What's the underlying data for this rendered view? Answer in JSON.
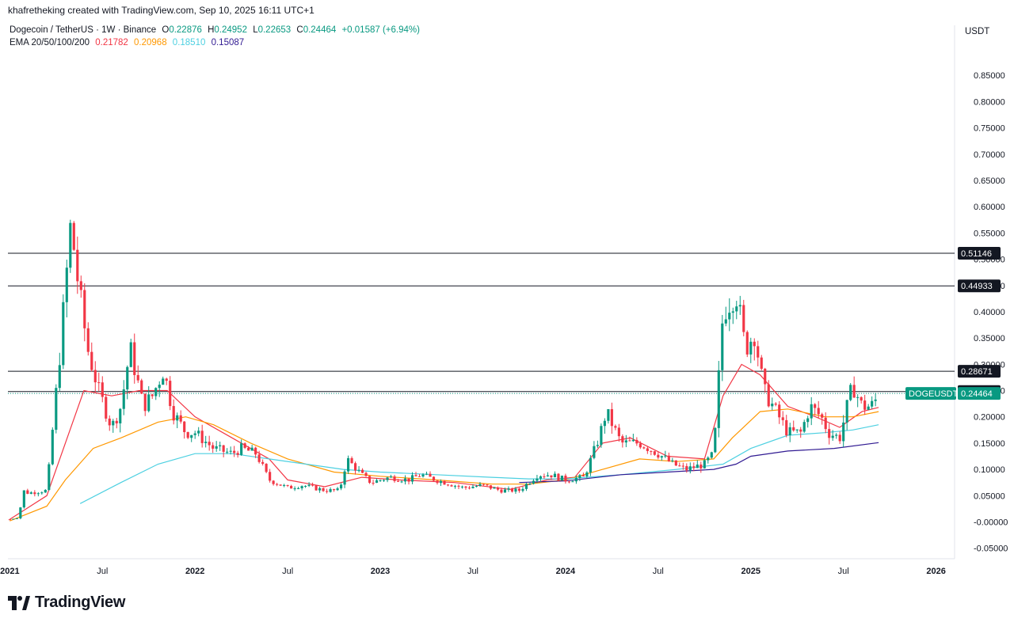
{
  "header": {
    "credit": "khafretheking created with TradingView.com, Sep 10, 2025 16:11 UTC+1",
    "symbol": "Dogecoin / TetherUS · 1W · Binance",
    "o_label": "O",
    "o_value": "0.22876",
    "h_label": "H",
    "h_value": "0.24952",
    "l_label": "L",
    "l_value": "0.22653",
    "c_label": "C",
    "c_value": "0.24464",
    "change": "+0.01587 (+6.94%)",
    "ema_label": "EMA 20/50/100/200",
    "ema20": "0.21782",
    "ema50": "0.20968",
    "ema100": "0.18510",
    "ema200": "0.15087",
    "unit": "USDT"
  },
  "brand": {
    "name": "TradingView",
    "logo_icon": "tradingview-logo-icon"
  },
  "colors": {
    "up": "#089981",
    "down": "#f23645",
    "ema20": "#f23645",
    "ema50": "#ff9800",
    "ema100": "#4dd0e1",
    "ema200": "#311b92"
  },
  "chart_data": {
    "type": "candlestick",
    "symbol": "DOGEUSDT",
    "ylim": [
      -0.07,
      0.9
    ],
    "y_ticks": [
      "-0.05000",
      "-0.00000",
      "0.05000",
      "0.10000",
      "0.15000",
      "0.20000",
      "0.25000",
      "0.30000",
      "0.35000",
      "0.40000",
      "0.45000",
      "0.50000",
      "0.55000",
      "0.60000",
      "0.65000",
      "0.70000",
      "0.75000",
      "0.80000",
      "0.85000"
    ],
    "x_ticks": [
      {
        "label": "2021",
        "t": 2021.0
      },
      {
        "label": "Jul",
        "t": 2021.5
      },
      {
        "label": "2022",
        "t": 2022.0
      },
      {
        "label": "Jul",
        "t": 2022.5
      },
      {
        "label": "2023",
        "t": 2023.0
      },
      {
        "label": "Jul",
        "t": 2023.5
      },
      {
        "label": "2024",
        "t": 2024.0
      },
      {
        "label": "Jul",
        "t": 2024.5
      },
      {
        "label": "2025",
        "t": 2025.0
      },
      {
        "label": "Jul",
        "t": 2025.5
      },
      {
        "label": "2026",
        "t": 2026.0
      }
    ],
    "x_range": [
      2020.99,
      2026.1
    ],
    "horizontal_levels": [
      {
        "value": 0.51146,
        "label": "0.51146"
      },
      {
        "value": 0.44933,
        "label": "0.44933"
      },
      {
        "value": 0.28671,
        "label": "0.28671"
      },
      {
        "value": 0.24827,
        "label": "0.24827"
      }
    ],
    "last_price": {
      "value": 0.24464,
      "label": "0.24464",
      "symbol_label": "DOGEUSDT"
    },
    "price_anchors": [
      [
        2021.0,
        0.005
      ],
      [
        2021.05,
        0.008
      ],
      [
        2021.07,
        0.06
      ],
      [
        2021.1,
        0.055
      ],
      [
        2021.2,
        0.06
      ],
      [
        2021.27,
        0.32
      ],
      [
        2021.33,
        0.57
      ],
      [
        2021.37,
        0.45
      ],
      [
        2021.42,
        0.33
      ],
      [
        2021.48,
        0.25
      ],
      [
        2021.55,
        0.18
      ],
      [
        2021.6,
        0.22
      ],
      [
        2021.65,
        0.33
      ],
      [
        2021.72,
        0.22
      ],
      [
        2021.77,
        0.24
      ],
      [
        2021.83,
        0.29
      ],
      [
        2021.88,
        0.21
      ],
      [
        2021.95,
        0.17
      ],
      [
        2022.0,
        0.17
      ],
      [
        2022.1,
        0.14
      ],
      [
        2022.2,
        0.13
      ],
      [
        2022.25,
        0.14
      ],
      [
        2022.33,
        0.13
      ],
      [
        2022.4,
        0.08
      ],
      [
        2022.5,
        0.065
      ],
      [
        2022.58,
        0.07
      ],
      [
        2022.7,
        0.06
      ],
      [
        2022.78,
        0.06
      ],
      [
        2022.82,
        0.12
      ],
      [
        2022.9,
        0.09
      ],
      [
        2022.95,
        0.075
      ],
      [
        2023.05,
        0.085
      ],
      [
        2023.15,
        0.08
      ],
      [
        2023.22,
        0.09
      ],
      [
        2023.3,
        0.08
      ],
      [
        2023.45,
        0.065
      ],
      [
        2023.55,
        0.07
      ],
      [
        2023.65,
        0.06
      ],
      [
        2023.75,
        0.06
      ],
      [
        2023.85,
        0.09
      ],
      [
        2023.92,
        0.09
      ],
      [
        2024.0,
        0.08
      ],
      [
        2024.1,
        0.085
      ],
      [
        2024.18,
        0.16
      ],
      [
        2024.22,
        0.21
      ],
      [
        2024.3,
        0.15
      ],
      [
        2024.4,
        0.15
      ],
      [
        2024.5,
        0.13
      ],
      [
        2024.58,
        0.11
      ],
      [
        2024.65,
        0.1
      ],
      [
        2024.75,
        0.11
      ],
      [
        2024.8,
        0.13
      ],
      [
        2024.85,
        0.4
      ],
      [
        2024.92,
        0.44
      ],
      [
        2024.97,
        0.33
      ],
      [
        2025.02,
        0.36
      ],
      [
        2025.07,
        0.25
      ],
      [
        2025.12,
        0.22
      ],
      [
        2025.2,
        0.17
      ],
      [
        2025.27,
        0.17
      ],
      [
        2025.32,
        0.22
      ],
      [
        2025.38,
        0.2
      ],
      [
        2025.42,
        0.17
      ],
      [
        2025.48,
        0.16
      ],
      [
        2025.52,
        0.22
      ],
      [
        2025.55,
        0.26
      ],
      [
        2025.6,
        0.22
      ],
      [
        2025.65,
        0.22
      ],
      [
        2025.69,
        0.24
      ]
    ],
    "ema_lines": [
      {
        "name": "EMA 20",
        "points": [
          [
            2021.0,
            0.005
          ],
          [
            2021.2,
            0.05
          ],
          [
            2021.3,
            0.15
          ],
          [
            2021.4,
            0.25
          ],
          [
            2021.55,
            0.24
          ],
          [
            2021.7,
            0.25
          ],
          [
            2021.85,
            0.25
          ],
          [
            2022.0,
            0.2
          ],
          [
            2022.2,
            0.16
          ],
          [
            2022.4,
            0.12
          ],
          [
            2022.5,
            0.08
          ],
          [
            2022.7,
            0.067
          ],
          [
            2022.9,
            0.085
          ],
          [
            2023.1,
            0.08
          ],
          [
            2023.4,
            0.075
          ],
          [
            2023.7,
            0.062
          ],
          [
            2023.9,
            0.08
          ],
          [
            2024.05,
            0.085
          ],
          [
            2024.2,
            0.15
          ],
          [
            2024.35,
            0.16
          ],
          [
            2024.55,
            0.125
          ],
          [
            2024.75,
            0.12
          ],
          [
            2024.85,
            0.24
          ],
          [
            2024.95,
            0.3
          ],
          [
            2025.05,
            0.28
          ],
          [
            2025.2,
            0.22
          ],
          [
            2025.35,
            0.2
          ],
          [
            2025.48,
            0.18
          ],
          [
            2025.6,
            0.21
          ],
          [
            2025.69,
            0.218
          ]
        ]
      },
      {
        "name": "EMA 50",
        "points": [
          [
            2021.0,
            0.002
          ],
          [
            2021.2,
            0.03
          ],
          [
            2021.3,
            0.08
          ],
          [
            2021.45,
            0.14
          ],
          [
            2021.6,
            0.16
          ],
          [
            2021.8,
            0.19
          ],
          [
            2021.95,
            0.2
          ],
          [
            2022.1,
            0.185
          ],
          [
            2022.3,
            0.15
          ],
          [
            2022.5,
            0.12
          ],
          [
            2022.75,
            0.095
          ],
          [
            2023.0,
            0.087
          ],
          [
            2023.3,
            0.08
          ],
          [
            2023.6,
            0.072
          ],
          [
            2023.8,
            0.072
          ],
          [
            2024.0,
            0.08
          ],
          [
            2024.2,
            0.1
          ],
          [
            2024.4,
            0.12
          ],
          [
            2024.6,
            0.115
          ],
          [
            2024.8,
            0.12
          ],
          [
            2024.9,
            0.16
          ],
          [
            2025.05,
            0.21
          ],
          [
            2025.2,
            0.215
          ],
          [
            2025.4,
            0.2
          ],
          [
            2025.55,
            0.2
          ],
          [
            2025.69,
            0.21
          ]
        ]
      },
      {
        "name": "EMA 100",
        "points": [
          [
            2021.38,
            0.035
          ],
          [
            2021.6,
            0.075
          ],
          [
            2021.8,
            0.11
          ],
          [
            2022.0,
            0.13
          ],
          [
            2022.2,
            0.13
          ],
          [
            2022.4,
            0.12
          ],
          [
            2022.6,
            0.11
          ],
          [
            2022.8,
            0.1
          ],
          [
            2023.0,
            0.095
          ],
          [
            2023.3,
            0.09
          ],
          [
            2023.6,
            0.085
          ],
          [
            2023.8,
            0.082
          ],
          [
            2024.0,
            0.082
          ],
          [
            2024.3,
            0.09
          ],
          [
            2024.6,
            0.1
          ],
          [
            2024.85,
            0.11
          ],
          [
            2025.0,
            0.14
          ],
          [
            2025.2,
            0.165
          ],
          [
            2025.4,
            0.17
          ],
          [
            2025.55,
            0.175
          ],
          [
            2025.69,
            0.185
          ]
        ]
      },
      {
        "name": "EMA 200",
        "points": [
          [
            2023.75,
            0.075
          ],
          [
            2024.0,
            0.078
          ],
          [
            2024.3,
            0.09
          ],
          [
            2024.55,
            0.095
          ],
          [
            2024.8,
            0.1
          ],
          [
            2024.92,
            0.11
          ],
          [
            2025.0,
            0.125
          ],
          [
            2025.2,
            0.135
          ],
          [
            2025.45,
            0.14
          ],
          [
            2025.69,
            0.151
          ]
        ]
      }
    ]
  }
}
